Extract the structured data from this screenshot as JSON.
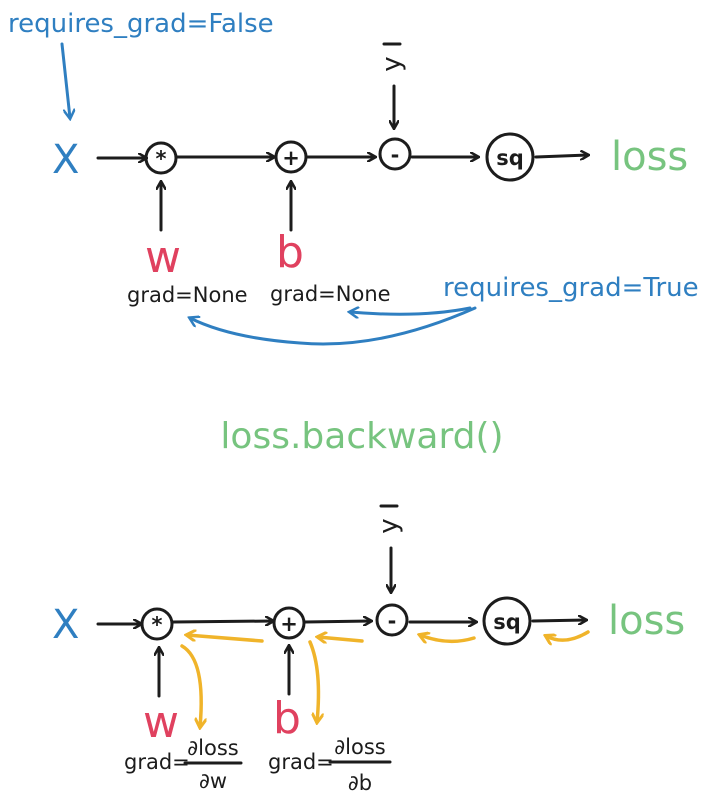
{
  "top": {
    "x_annotation": "requires_grad=False",
    "x_label": "X",
    "ops": {
      "mul": "*",
      "add": "+",
      "sub": "-",
      "sq": "sq"
    },
    "y_label": "y",
    "loss_label": "loss",
    "w_label": "w",
    "b_label": "b",
    "w_grad": "grad=None",
    "b_grad": "grad=None",
    "params_annotation": "requires_grad=True"
  },
  "call": "loss.backward()",
  "bottom": {
    "x_label": "X",
    "ops": {
      "mul": "*",
      "add": "+",
      "sub": "-",
      "sq": "sq"
    },
    "y_label": "y",
    "loss_label": "loss",
    "w_label": "w",
    "b_label": "b",
    "grad_prefix": "grad=",
    "w_grad_num": "∂loss",
    "w_grad_den": "∂w",
    "b_grad_num": "∂loss",
    "b_grad_den": "∂b"
  },
  "colors": {
    "blue": "#2f7fc1",
    "green": "#77c47f",
    "red": "#e0415f",
    "yellow": "#f0b42a",
    "ink": "#1c1c1c"
  }
}
